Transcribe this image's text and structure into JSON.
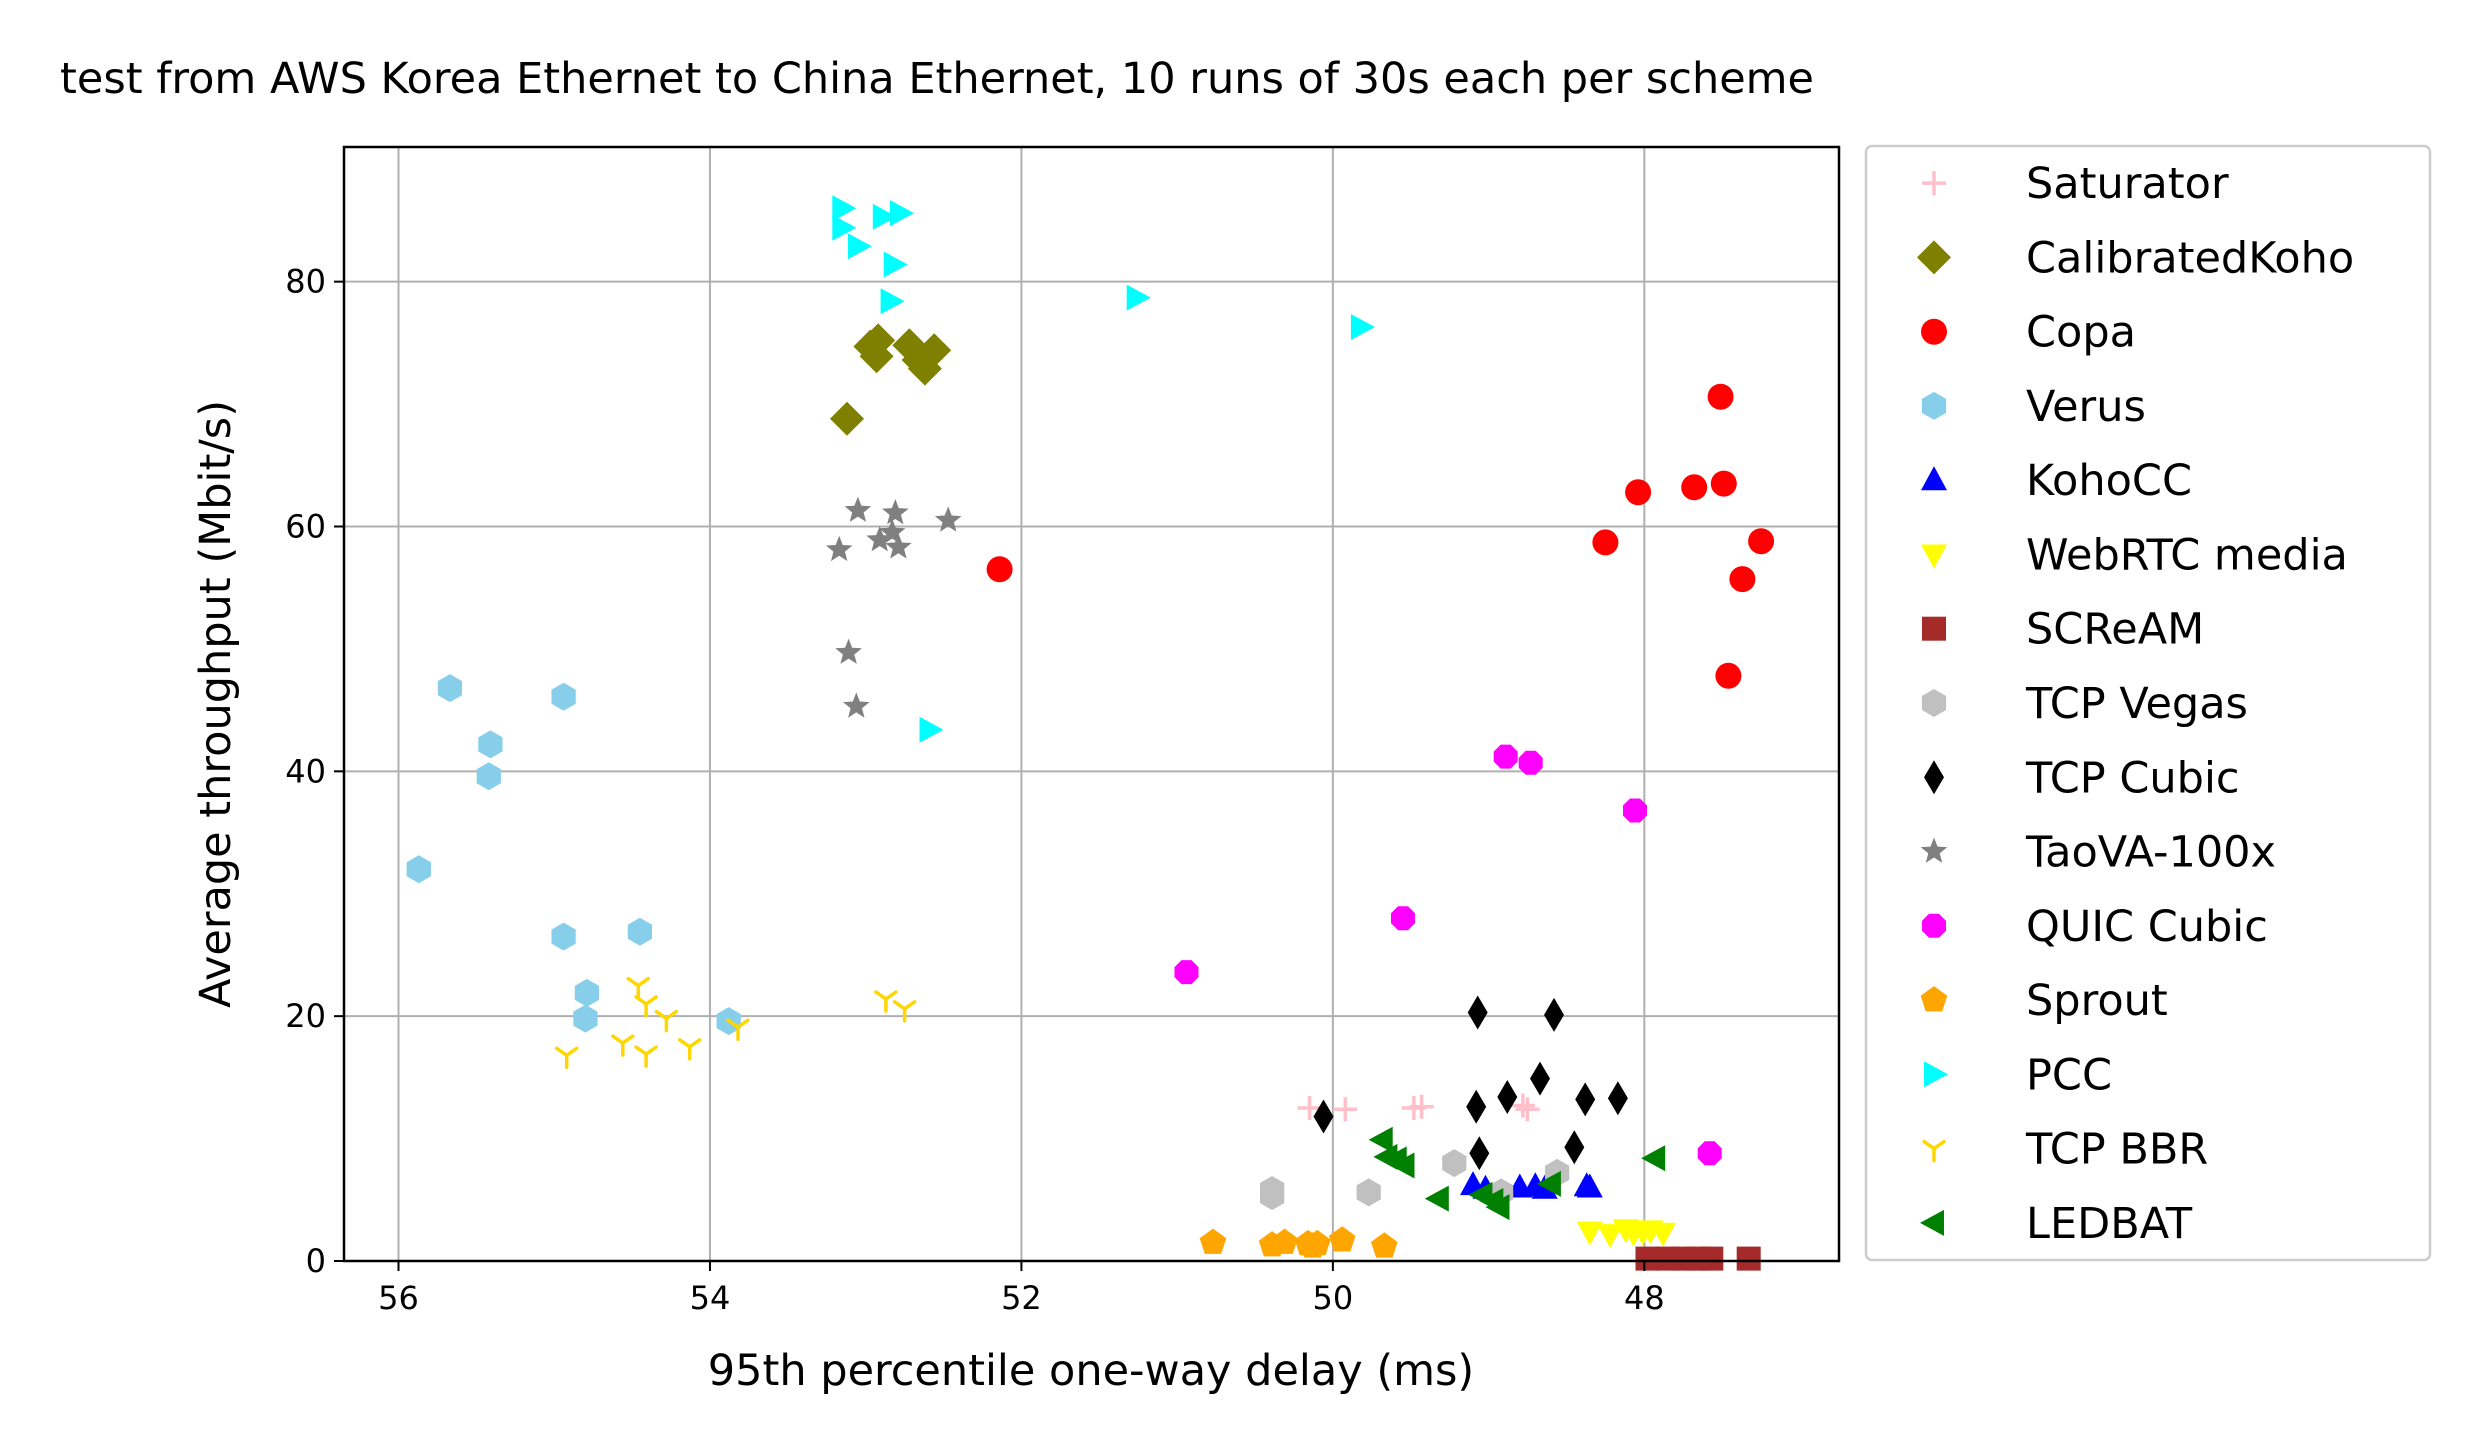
{
  "chart_data": {
    "type": "scatter",
    "title": "test from AWS Korea Ethernet to China Ethernet, 10 runs of 30s each per scheme",
    "xlabel": "95th percentile one-way delay (ms)",
    "ylabel": "Average throughput (Mbit/s)",
    "x_inverted": true,
    "xlim": [
      56.35,
      46.75
    ],
    "ylim": [
      0,
      91
    ],
    "xticks": [
      56,
      54,
      52,
      50,
      48
    ],
    "yticks": [
      0,
      20,
      40,
      60,
      80
    ],
    "grid": true,
    "legend_position": "outside-right",
    "series": [
      {
        "name": "Saturator",
        "marker": "plus",
        "color": "#ffc0cb",
        "points": [
          [
            50.15,
            12.5
          ],
          [
            49.92,
            12.4
          ],
          [
            49.48,
            12.5
          ],
          [
            49.43,
            12.6
          ],
          [
            48.75,
            12.4
          ],
          [
            48.78,
            12.7
          ]
        ]
      },
      {
        "name": "CalibratedKoho",
        "marker": "diamond",
        "color": "#808000",
        "points": [
          [
            53.12,
            68.8
          ],
          [
            52.97,
            74.7
          ],
          [
            52.92,
            75.2
          ],
          [
            52.93,
            73.9
          ],
          [
            52.72,
            74.8
          ],
          [
            52.66,
            73.6
          ],
          [
            52.62,
            72.9
          ],
          [
            52.56,
            74.4
          ]
        ]
      },
      {
        "name": "Copa",
        "marker": "circle",
        "color": "#ff0000",
        "points": [
          [
            52.14,
            56.5
          ],
          [
            48.25,
            58.7
          ],
          [
            48.04,
            62.8
          ],
          [
            47.68,
            63.2
          ],
          [
            47.51,
            70.6
          ],
          [
            47.49,
            63.5
          ],
          [
            47.46,
            47.8
          ],
          [
            47.37,
            55.7
          ],
          [
            47.25,
            58.8
          ]
        ]
      },
      {
        "name": "Verus",
        "marker": "hexagon",
        "color": "#87ceeb",
        "points": [
          [
            55.67,
            46.8
          ],
          [
            55.41,
            42.2
          ],
          [
            55.42,
            39.6
          ],
          [
            55.87,
            32.0
          ],
          [
            54.94,
            46.1
          ],
          [
            54.94,
            26.5
          ],
          [
            54.79,
            21.9
          ],
          [
            54.8,
            19.8
          ],
          [
            54.45,
            26.9
          ],
          [
            53.88,
            19.6
          ]
        ]
      },
      {
        "name": "KohoCC",
        "marker": "triangle-up",
        "color": "#0000ff",
        "points": [
          [
            49.1,
            6.2
          ],
          [
            49.02,
            5.9
          ],
          [
            48.8,
            6.0
          ],
          [
            48.7,
            6.1
          ],
          [
            48.64,
            5.9
          ],
          [
            48.37,
            6.1
          ],
          [
            48.35,
            6.0
          ]
        ]
      },
      {
        "name": "WebRTC media",
        "marker": "triangle-down",
        "color": "#ffff00",
        "points": [
          [
            48.35,
            2.4
          ],
          [
            48.22,
            2.2
          ],
          [
            48.12,
            2.6
          ],
          [
            48.07,
            2.3
          ],
          [
            48.01,
            2.4
          ],
          [
            47.96,
            2.5
          ],
          [
            47.88,
            2.3
          ]
        ]
      },
      {
        "name": "SCReAM",
        "marker": "square",
        "color": "#a52a2a",
        "points": [
          [
            47.98,
            0.2
          ],
          [
            47.85,
            0.2
          ],
          [
            47.75,
            0.2
          ],
          [
            47.66,
            0.2
          ],
          [
            47.57,
            0.2
          ],
          [
            47.33,
            0.2
          ]
        ]
      },
      {
        "name": "TCP Vegas",
        "marker": "hexagon",
        "color": "#c0c0c0",
        "points": [
          [
            50.39,
            5.8
          ],
          [
            50.39,
            5.3
          ],
          [
            49.77,
            5.6
          ],
          [
            49.22,
            8.0
          ],
          [
            48.92,
            5.6
          ],
          [
            48.56,
            7.2
          ]
        ]
      },
      {
        "name": "TCP Cubic",
        "marker": "thin-diamond",
        "color": "#000000",
        "points": [
          [
            50.06,
            11.8
          ],
          [
            49.07,
            20.3
          ],
          [
            49.08,
            12.6
          ],
          [
            49.06,
            8.8
          ],
          [
            48.88,
            13.4
          ],
          [
            48.67,
            14.9
          ],
          [
            48.58,
            20.1
          ],
          [
            48.45,
            9.3
          ],
          [
            48.38,
            13.2
          ],
          [
            48.17,
            13.3
          ]
        ]
      },
      {
        "name": "TaoVA-100x",
        "marker": "star",
        "color": "#808080",
        "points": [
          [
            53.05,
            61.3
          ],
          [
            52.81,
            61.1
          ],
          [
            52.47,
            60.5
          ],
          [
            53.17,
            58.1
          ],
          [
            52.91,
            58.9
          ],
          [
            52.83,
            59.5
          ],
          [
            52.79,
            58.3
          ],
          [
            53.11,
            49.7
          ],
          [
            53.06,
            45.3
          ]
        ]
      },
      {
        "name": "QUIC Cubic",
        "marker": "octagon",
        "color": "#ff00ff",
        "points": [
          [
            50.94,
            23.6
          ],
          [
            49.55,
            28.0
          ],
          [
            48.89,
            41.2
          ],
          [
            48.73,
            40.7
          ],
          [
            48.06,
            36.8
          ],
          [
            47.58,
            8.8
          ]
        ]
      },
      {
        "name": "Sprout",
        "marker": "pentagon",
        "color": "#ffa500",
        "points": [
          [
            50.77,
            1.5
          ],
          [
            50.39,
            1.3
          ],
          [
            50.31,
            1.5
          ],
          [
            50.16,
            1.4
          ],
          [
            50.13,
            1.2
          ],
          [
            50.1,
            1.4
          ],
          [
            49.94,
            1.7
          ],
          [
            49.67,
            1.2
          ]
        ]
      },
      {
        "name": "PCC",
        "marker": "triangle-right",
        "color": "#00ffff",
        "points": [
          [
            53.15,
            86.0
          ],
          [
            53.15,
            84.4
          ],
          [
            53.05,
            82.9
          ],
          [
            52.89,
            85.3
          ],
          [
            52.78,
            85.6
          ],
          [
            52.82,
            81.4
          ],
          [
            52.84,
            78.4
          ],
          [
            51.26,
            78.7
          ],
          [
            49.82,
            76.3
          ],
          [
            52.59,
            43.4
          ]
        ]
      },
      {
        "name": "TCP BBR",
        "marker": "tri-down",
        "color": "#ffd700",
        "points": [
          [
            54.92,
            16.8
          ],
          [
            54.56,
            17.8
          ],
          [
            54.46,
            22.5
          ],
          [
            54.41,
            21.0
          ],
          [
            54.41,
            16.9
          ],
          [
            54.28,
            19.8
          ],
          [
            54.13,
            17.5
          ],
          [
            53.82,
            19.1
          ],
          [
            52.87,
            21.4
          ],
          [
            52.75,
            20.6
          ]
        ]
      },
      {
        "name": "LEDBAT",
        "marker": "triangle-left",
        "color": "#008000",
        "points": [
          [
            49.68,
            9.9
          ],
          [
            49.65,
            8.5
          ],
          [
            49.59,
            8.3
          ],
          [
            49.54,
            7.8
          ],
          [
            49.32,
            5.1
          ],
          [
            49.04,
            5.4
          ],
          [
            48.97,
            4.9
          ],
          [
            48.93,
            4.4
          ],
          [
            48.6,
            6.3
          ],
          [
            47.93,
            8.4
          ]
        ]
      }
    ]
  }
}
